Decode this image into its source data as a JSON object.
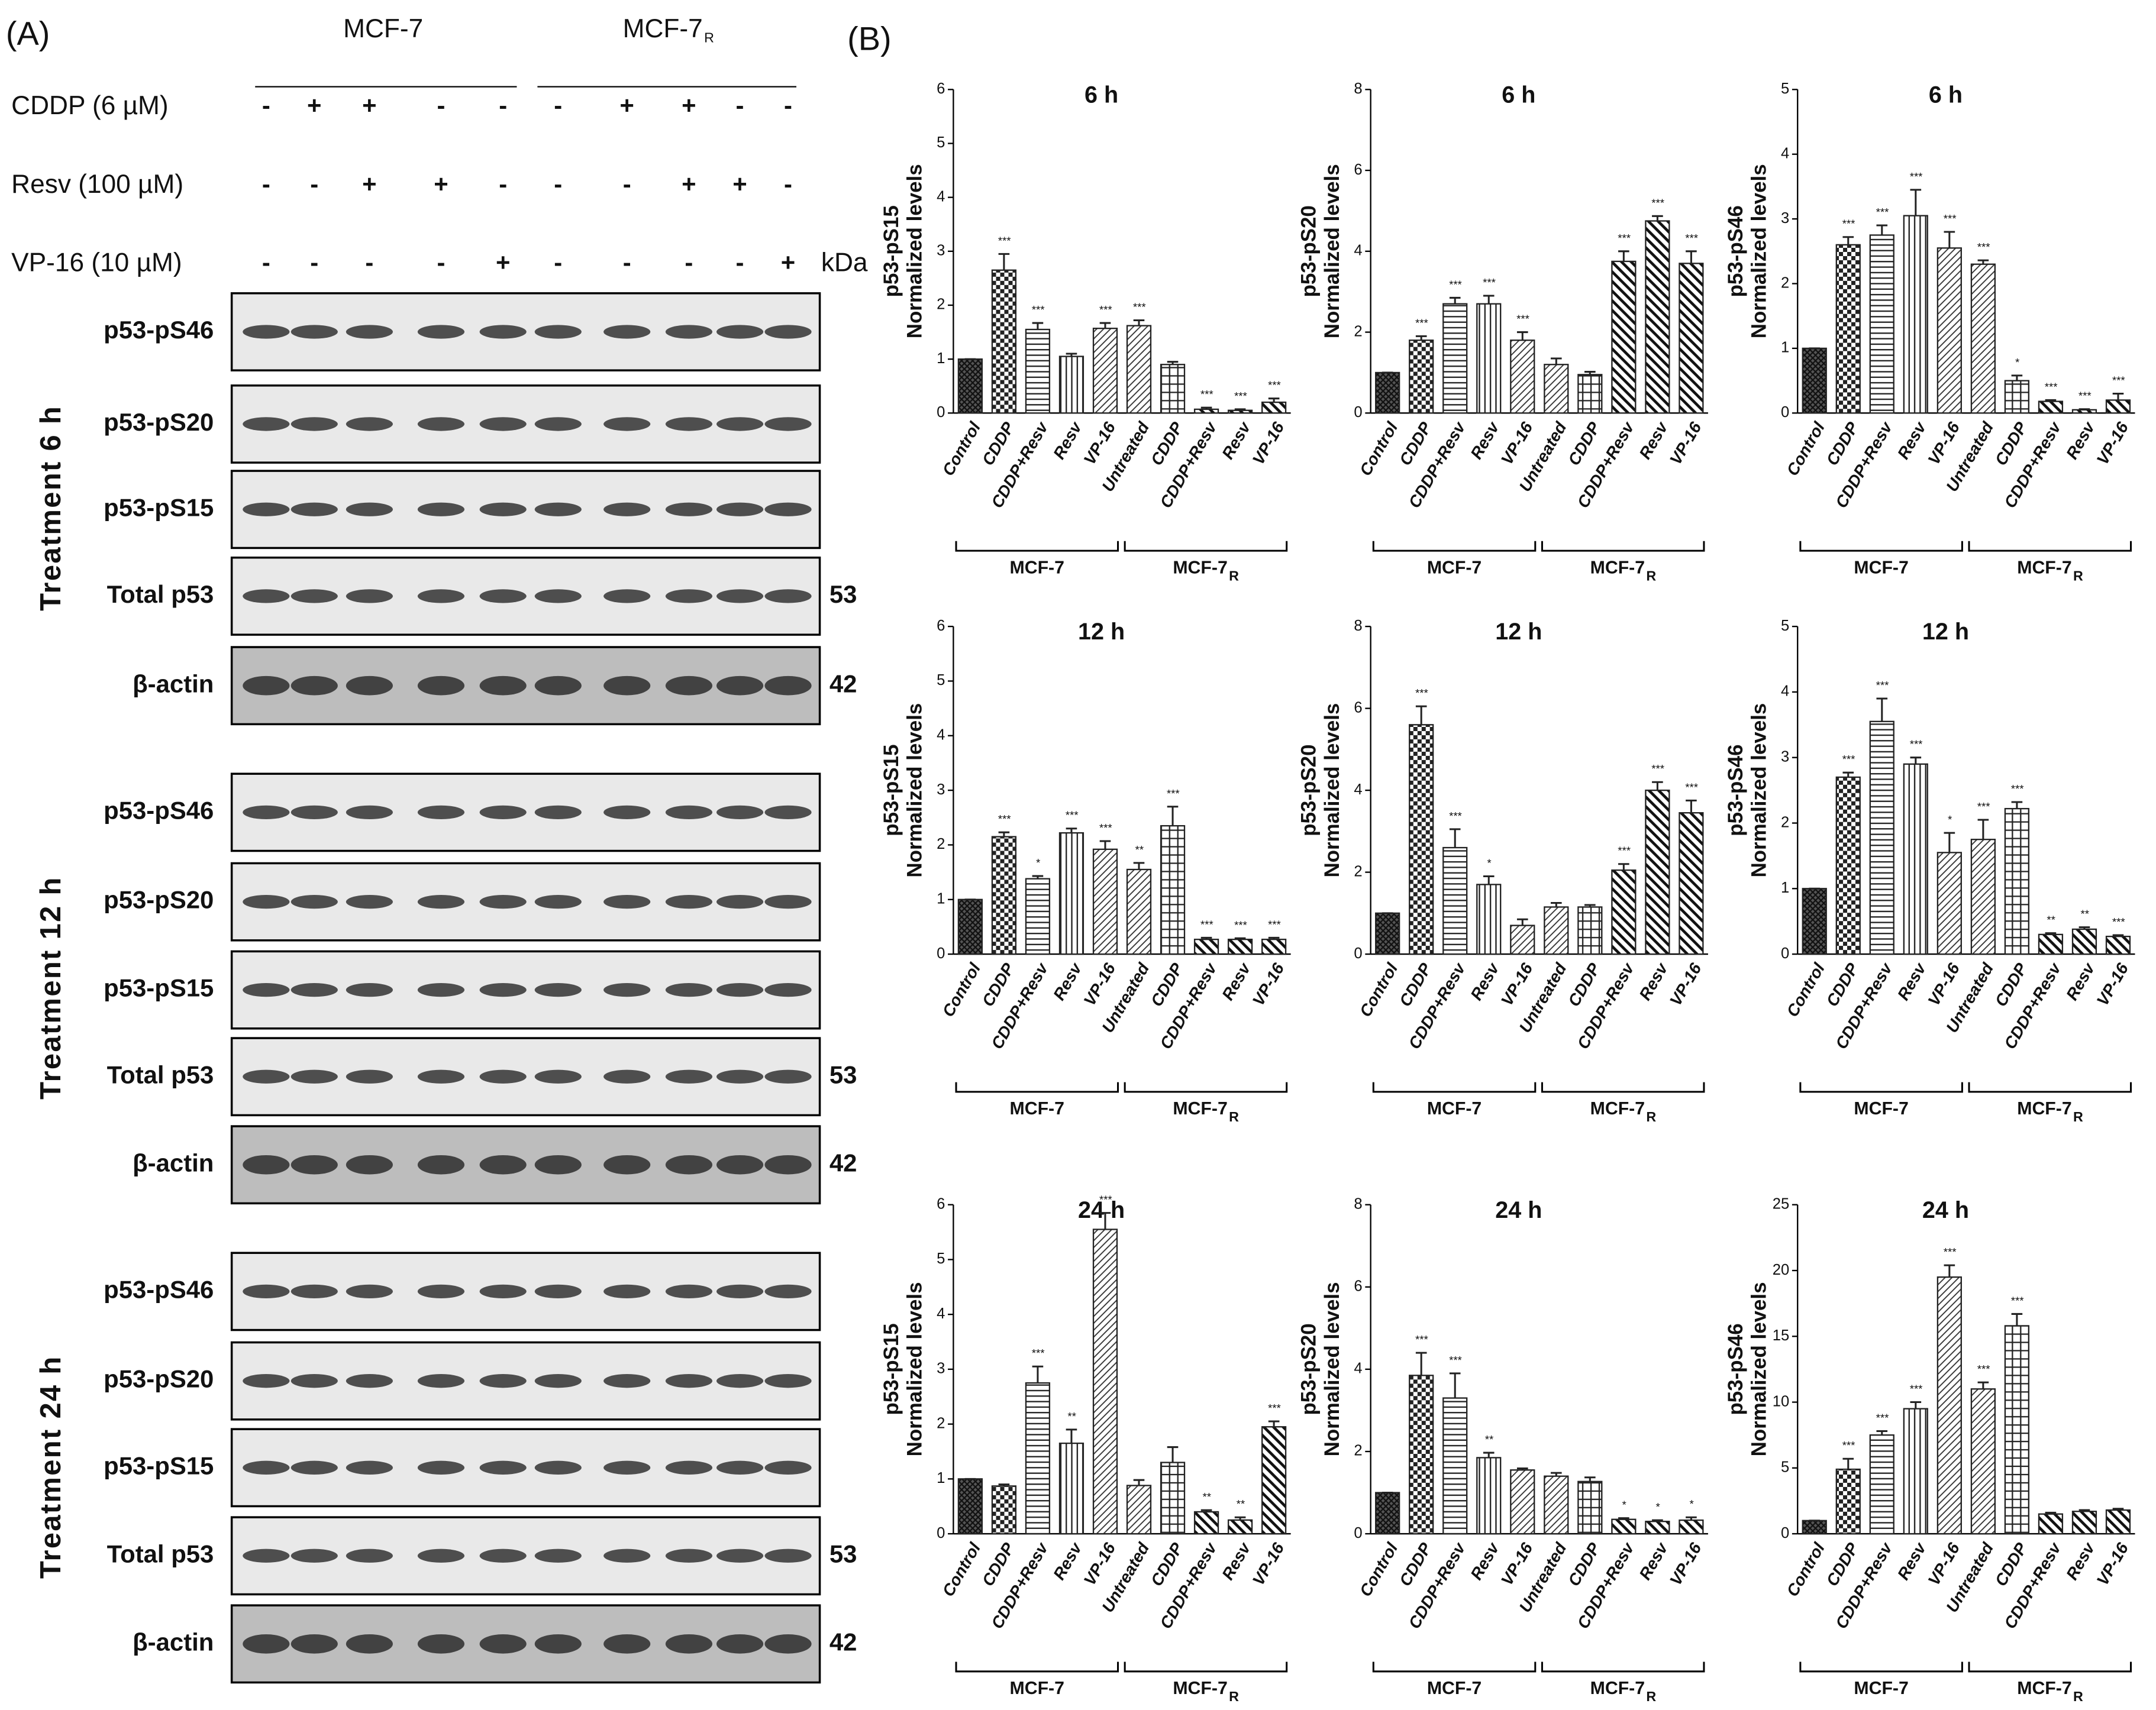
{
  "panel_a": {
    "label": "(A)",
    "cell_lines": [
      {
        "label": "MCF-7"
      },
      {
        "label": "MCF-7",
        "subscript": "R"
      }
    ],
    "treatments": [
      {
        "label": "CDDP (6 µM)",
        "signs": [
          "-",
          "+",
          "+",
          "-",
          "-",
          "-",
          "+",
          "+",
          "-",
          "-"
        ]
      },
      {
        "label": "Resv (100 µM)",
        "signs": [
          "-",
          "-",
          "+",
          "+",
          "-",
          "-",
          "-",
          "+",
          "+",
          "-"
        ]
      },
      {
        "label": "VP-16 (10 µM)",
        "signs": [
          "-",
          "-",
          "-",
          "-",
          "+",
          "-",
          "-",
          "-",
          "-",
          "+"
        ]
      }
    ],
    "kda_label": "kDa",
    "sections": [
      {
        "label": "Treatment 6 h",
        "blots": [
          {
            "label": "p53-pS46"
          },
          {
            "label": "p53-pS20"
          },
          {
            "label": "p53-pS15"
          },
          {
            "label": "Total p53",
            "kda": 53
          },
          {
            "label": "β-actin",
            "kda": 42
          }
        ]
      },
      {
        "label": "Treatment 12 h",
        "blots": [
          {
            "label": "p53-pS46"
          },
          {
            "label": "p53-pS20"
          },
          {
            "label": "p53-pS15"
          },
          {
            "label": "Total p53",
            "kda": 53
          },
          {
            "label": "β-actin",
            "kda": 42
          }
        ]
      },
      {
        "label": "Treatment 24 h",
        "blots": [
          {
            "label": "p53-pS46"
          },
          {
            "label": "p53-pS20"
          },
          {
            "label": "p53-pS15"
          },
          {
            "label": "Total p53",
            "kda": 53
          },
          {
            "label": "β-actin",
            "kda": 42
          }
        ]
      }
    ]
  },
  "panel_b": {
    "label": "(B)"
  },
  "chart_data": [
    {
      "type": "bar",
      "title": "6 h",
      "ylabel": "p53-pS15",
      "ylabel2": "Normalized levels",
      "color": "#222222",
      "categories": [
        "Control",
        "CDDP",
        "CDDP+Resv",
        "Resv",
        "VP-16",
        "Untreated",
        "CDDP",
        "CDDP+Resv",
        "Resv",
        "VP-16"
      ],
      "values": [
        1,
        2.65,
        1.55,
        1.05,
        1.57,
        1.62,
        0.9,
        0.07,
        0.05,
        0.2
      ],
      "errors": [
        0,
        0.3,
        0.12,
        0.05,
        0.1,
        0.1,
        0.05,
        0.03,
        0.02,
        0.07
      ],
      "annotations": [
        null,
        "***",
        "***",
        null,
        "***",
        "***",
        null,
        "***",
        "***",
        "***"
      ],
      "groups": [
        {
          "label": "MCF-7"
        },
        {
          "label": "MCF-7",
          "subscript": "R"
        }
      ],
      "ylim": [
        0,
        6
      ],
      "yticks": [
        0,
        1,
        2,
        3,
        4,
        5,
        6
      ]
    },
    {
      "type": "bar",
      "title": "6 h",
      "ylabel": "p53-pS20",
      "ylabel2": "Normalized levels",
      "color": "#222222",
      "categories": [
        "Control",
        "CDDP",
        "CDDP+Resv",
        "Resv",
        "VP-16",
        "Untreated",
        "CDDP",
        "CDDP+Resv",
        "Resv",
        "VP-16"
      ],
      "values": [
        1,
        1.8,
        2.7,
        2.7,
        1.8,
        1.2,
        0.95,
        3.75,
        4.75,
        3.7
      ],
      "errors": [
        0,
        0.1,
        0.15,
        0.2,
        0.2,
        0.15,
        0.07,
        0.25,
        0.12,
        0.3
      ],
      "annotations": [
        null,
        "***",
        "***",
        "***",
        "***",
        null,
        null,
        "***",
        "***",
        "***"
      ],
      "groups": [
        {
          "label": "MCF-7"
        },
        {
          "label": "MCF-7",
          "subscript": "R"
        }
      ],
      "ylim": [
        0,
        8
      ],
      "yticks": [
        0,
        2,
        4,
        6,
        8
      ]
    },
    {
      "type": "bar",
      "title": "6 h",
      "ylabel": "p53-pS46",
      "ylabel2": "Normalized levels",
      "color": "#222222",
      "categories": [
        "Control",
        "CDDP",
        "CDDP+Resv",
        "Resv",
        "VP-16",
        "Untreated",
        "CDDP",
        "CDDP+Resv",
        "Resv",
        "VP-16"
      ],
      "values": [
        1,
        2.6,
        2.75,
        3.05,
        2.55,
        2.3,
        0.5,
        0.18,
        0.05,
        0.2
      ],
      "errors": [
        0,
        0.12,
        0.15,
        0.4,
        0.25,
        0.06,
        0.08,
        0.02,
        0.01,
        0.1
      ],
      "annotations": [
        null,
        "***",
        "***",
        "***",
        "***",
        "***",
        "*",
        "***",
        "***",
        "***"
      ],
      "groups": [
        {
          "label": "MCF-7"
        },
        {
          "label": "MCF-7",
          "subscript": "R"
        }
      ],
      "ylim": [
        0,
        5
      ],
      "yticks": [
        0,
        1,
        2,
        3,
        4,
        5
      ]
    },
    {
      "type": "bar",
      "title": "12 h",
      "ylabel": "p53-pS15",
      "ylabel2": "Normalized levels",
      "color": "#222222",
      "categories": [
        "Control",
        "CDDP",
        "CDDP+Resv",
        "Resv",
        "VP-16",
        "Untreated",
        "CDDP",
        "CDDP+Resv",
        "Resv",
        "VP-16"
      ],
      "values": [
        1,
        2.15,
        1.38,
        2.22,
        1.92,
        1.55,
        2.35,
        0.27,
        0.27,
        0.27
      ],
      "errors": [
        0,
        0.08,
        0.05,
        0.08,
        0.15,
        0.12,
        0.35,
        0.03,
        0.02,
        0.03
      ],
      "annotations": [
        null,
        "***",
        "*",
        "***",
        "***",
        "**",
        "***",
        "***",
        "***",
        "***"
      ],
      "groups": [
        {
          "label": "MCF-7"
        },
        {
          "label": "MCF-7",
          "subscript": "R"
        }
      ],
      "ylim": [
        0,
        6
      ],
      "yticks": [
        0,
        1,
        2,
        3,
        4,
        5,
        6
      ]
    },
    {
      "type": "bar",
      "title": "12 h",
      "ylabel": "p53-pS20",
      "ylabel2": "Normalized levels",
      "color": "#222222",
      "categories": [
        "Control",
        "CDDP",
        "CDDP+Resv",
        "Resv",
        "VP-16",
        "Untreated",
        "CDDP",
        "CDDP+Resv",
        "Resv",
        "VP-16"
      ],
      "values": [
        1,
        5.6,
        2.6,
        1.7,
        0.7,
        1.15,
        1.15,
        2.05,
        4,
        3.45
      ],
      "errors": [
        0,
        0.45,
        0.45,
        0.2,
        0.15,
        0.1,
        0.05,
        0.15,
        0.2,
        0.3
      ],
      "annotations": [
        null,
        "***",
        "***",
        "*",
        null,
        null,
        null,
        "***",
        "***",
        "***"
      ],
      "groups": [
        {
          "label": "MCF-7"
        },
        {
          "label": "MCF-7",
          "subscript": "R"
        }
      ],
      "ylim": [
        0,
        8
      ],
      "yticks": [
        0,
        2,
        4,
        6,
        8
      ]
    },
    {
      "type": "bar",
      "title": "12 h",
      "ylabel": "p53-pS46",
      "ylabel2": "Normalized levels",
      "color": "#222222",
      "categories": [
        "Control",
        "CDDP",
        "CDDP+Resv",
        "Resv",
        "VP-16",
        "Untreated",
        "CDDP",
        "CDDP+Resv",
        "Resv",
        "VP-16"
      ],
      "values": [
        1,
        2.7,
        3.55,
        2.9,
        1.55,
        1.75,
        2.22,
        0.3,
        0.38,
        0.27
      ],
      "errors": [
        0,
        0.07,
        0.35,
        0.1,
        0.3,
        0.3,
        0.1,
        0.02,
        0.03,
        0.02
      ],
      "annotations": [
        null,
        "***",
        "***",
        "***",
        "*",
        "***",
        "***",
        "**",
        "**",
        "***"
      ],
      "groups": [
        {
          "label": "MCF-7"
        },
        {
          "label": "MCF-7",
          "subscript": "R"
        }
      ],
      "ylim": [
        0,
        5
      ],
      "yticks": [
        0,
        1,
        2,
        3,
        4,
        5
      ]
    },
    {
      "type": "bar",
      "title": "24 h",
      "ylabel": "p53-pS15",
      "ylabel2": "Normalized levels",
      "color": "#222222",
      "categories": [
        "Control",
        "CDDP",
        "CDDP+Resv",
        "Resv",
        "VP-16",
        "Untreated",
        "CDDP",
        "CDDP+Resv",
        "Resv",
        "VP-16"
      ],
      "values": [
        1,
        0.87,
        2.75,
        1.65,
        5.55,
        0.88,
        1.3,
        0.4,
        0.25,
        1.95
      ],
      "errors": [
        0,
        0.03,
        0.3,
        0.25,
        0.3,
        0.1,
        0.28,
        0.03,
        0.05,
        0.1
      ],
      "annotations": [
        null,
        null,
        "***",
        "**",
        "***",
        null,
        null,
        "**",
        "**",
        "***"
      ],
      "groups": [
        {
          "label": "MCF-7"
        },
        {
          "label": "MCF-7",
          "subscript": "R"
        }
      ],
      "ylim": [
        0,
        6
      ],
      "yticks": [
        0,
        1,
        2,
        3,
        4,
        5,
        6
      ]
    },
    {
      "type": "bar",
      "title": "24 h",
      "ylabel": "p53-pS20",
      "ylabel2": "Normalized levels",
      "color": "#222222",
      "categories": [
        "Control",
        "CDDP",
        "CDDP+Resv",
        "Resv",
        "VP-16",
        "Untreated",
        "CDDP",
        "CDDP+Resv",
        "Resv",
        "VP-16"
      ],
      "values": [
        1,
        3.85,
        3.3,
        1.85,
        1.55,
        1.4,
        1.27,
        0.35,
        0.3,
        0.33
      ],
      "errors": [
        0,
        0.55,
        0.6,
        0.12,
        0.04,
        0.08,
        0.1,
        0.03,
        0.03,
        0.07
      ],
      "annotations": [
        null,
        "***",
        "***",
        "**",
        null,
        null,
        null,
        "*",
        "*",
        "*"
      ],
      "groups": [
        {
          "label": "MCF-7"
        },
        {
          "label": "MCF-7",
          "subscript": "R"
        }
      ],
      "ylim": [
        0,
        8
      ],
      "yticks": [
        0,
        2,
        4,
        6,
        8
      ]
    },
    {
      "type": "bar",
      "title": "24 h",
      "ylabel": "p53-pS46",
      "ylabel2": "Normalized levels",
      "color": "#222222",
      "categories": [
        "Control",
        "CDDP",
        "CDDP+Resv",
        "Resv",
        "VP-16",
        "Untreated",
        "CDDP",
        "CDDP+Resv",
        "Resv",
        "VP-16"
      ],
      "values": [
        1,
        4.9,
        7.5,
        9.5,
        19.5,
        11,
        15.8,
        1.5,
        1.7,
        1.8
      ],
      "errors": [
        0,
        0.8,
        0.3,
        0.5,
        0.9,
        0.5,
        0.9,
        0.1,
        0.1,
        0.1
      ],
      "annotations": [
        null,
        "***",
        "***",
        "***",
        "***",
        "***",
        "***",
        null,
        null,
        null
      ],
      "groups": [
        {
          "label": "MCF-7"
        },
        {
          "label": "MCF-7",
          "subscript": "R"
        }
      ],
      "ylim": [
        0,
        25
      ],
      "yticks": [
        0,
        5,
        10,
        15,
        20,
        25
      ]
    }
  ]
}
